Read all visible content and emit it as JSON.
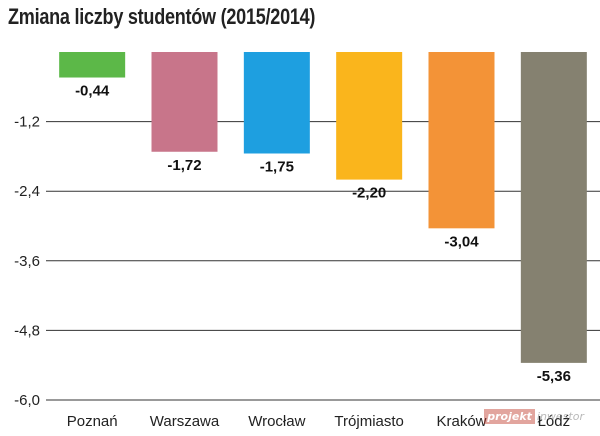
{
  "chart_data": {
    "type": "bar",
    "title": "Zmiana liczby studentów (2015/2014)",
    "xlabel": "",
    "ylabel": "",
    "categories": [
      "Poznań",
      "Warszawa",
      "Wrocław",
      "Trójmiasto",
      "Kraków",
      "Łódź"
    ],
    "values": [
      -0.44,
      -1.72,
      -1.75,
      -2.2,
      -3.04,
      -5.36
    ],
    "value_labels": [
      "-0,44",
      "-1,72",
      "-1,75",
      "-2,20",
      "-3,04",
      "-5,36"
    ],
    "colors": [
      "#5cb848",
      "#c8758a",
      "#1e9fe0",
      "#fab51c",
      "#f39337",
      "#858170"
    ],
    "ylim": [
      -6.0,
      0
    ],
    "yticks": [
      -1.2,
      -2.4,
      -3.6,
      -4.8,
      -6.0
    ],
    "ytick_labels": [
      "-1,2",
      "-2,4",
      "-3,6",
      "-4,8",
      "-6,0"
    ],
    "grid": true,
    "legend": "none"
  },
  "watermark": {
    "left": "projekt",
    "right": "inwestor"
  }
}
